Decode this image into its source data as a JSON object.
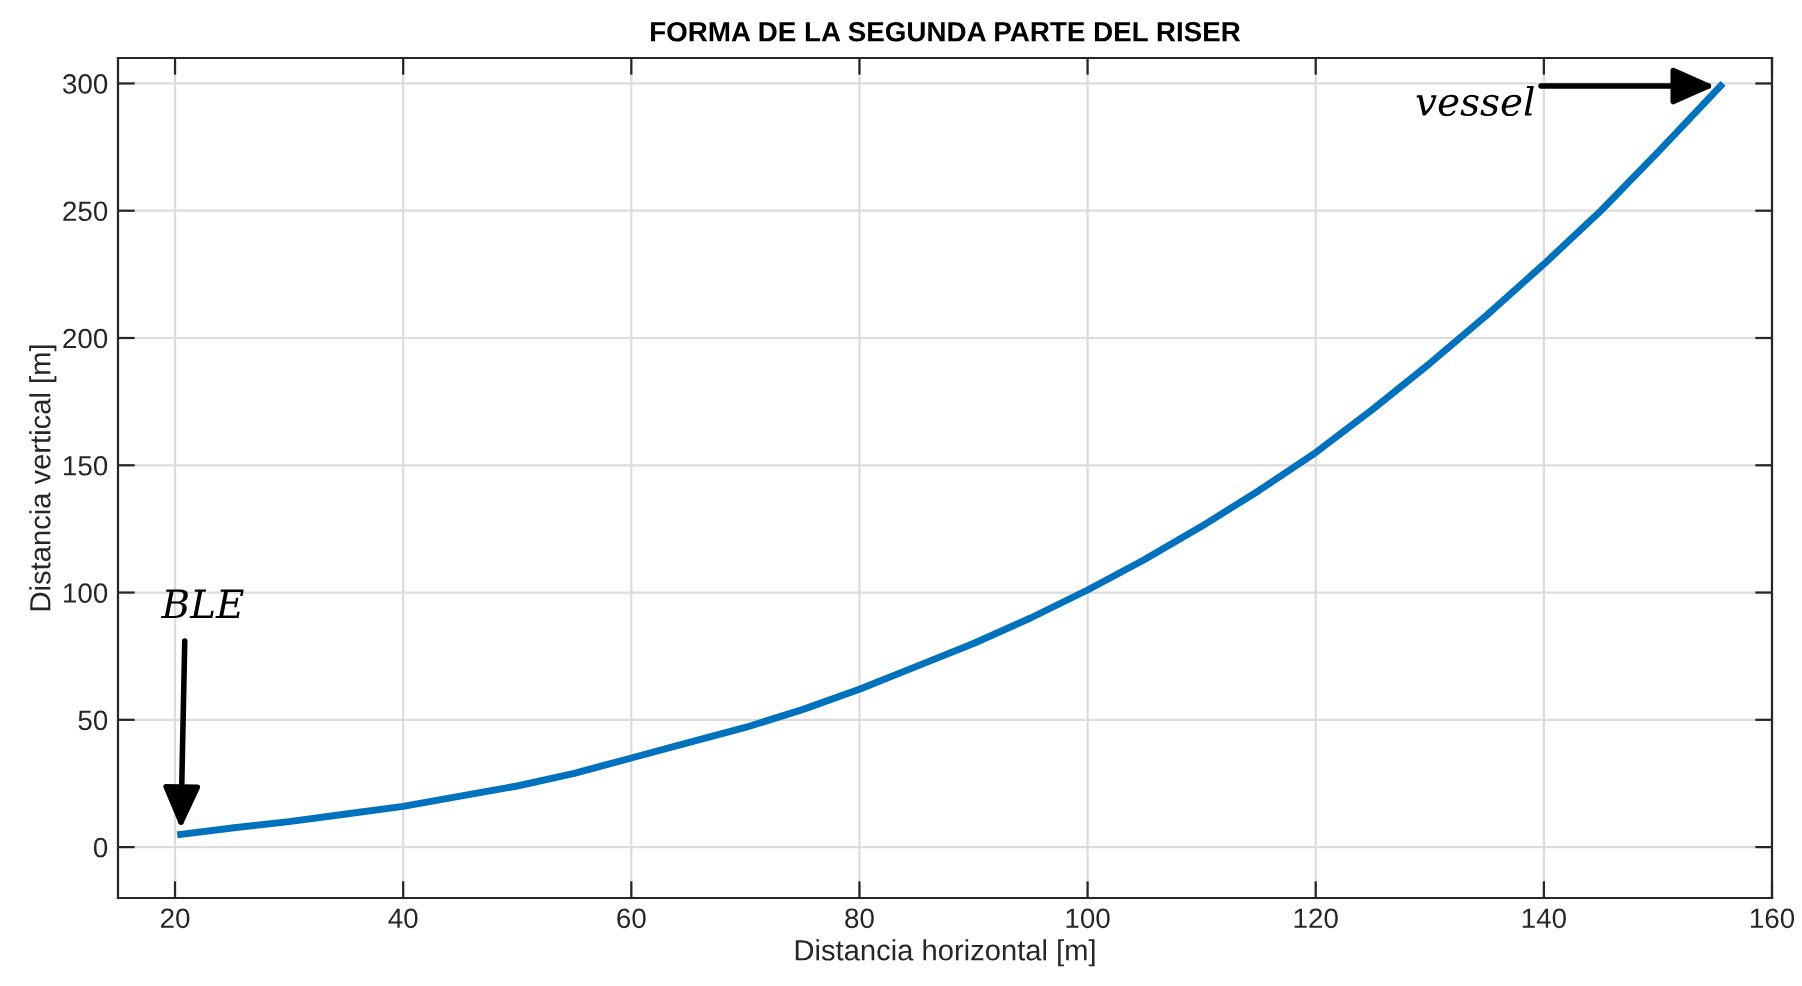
{
  "chart_data": {
    "type": "line",
    "title": "FORMA DE LA SEGUNDA PARTE DEL RISER",
    "xlabel": "Distancia horizontal [m]",
    "ylabel": "Distancia vertical [m]",
    "x": [
      20.5,
      25,
      30,
      35,
      40,
      45,
      50,
      55,
      60,
      65,
      70,
      75,
      80,
      85,
      90,
      95,
      100,
      105,
      110,
      115,
      120,
      125,
      130,
      135,
      140,
      145,
      150,
      155.5
    ],
    "series": [
      {
        "color": "#0072bd",
        "values": [
          5,
          7.5,
          10,
          13,
          16,
          20,
          24,
          29,
          35,
          41,
          47,
          54,
          62,
          71,
          80,
          90,
          101,
          113,
          126,
          140,
          155,
          172,
          190,
          209,
          229,
          250,
          273,
          299
        ]
      }
    ],
    "xlim": [
      15,
      160
    ],
    "ylim": [
      -20,
      310
    ],
    "xticks": [
      20,
      40,
      60,
      80,
      100,
      120,
      140,
      160
    ],
    "yticks": [
      0,
      50,
      100,
      150,
      200,
      250,
      300
    ],
    "grid": true,
    "line_style": "solid",
    "marker": "none",
    "annotations": [
      {
        "text": "BLE",
        "x": 20.5,
        "y": 5
      },
      {
        "text": "vessel",
        "x": 155.5,
        "y": 299
      }
    ]
  }
}
